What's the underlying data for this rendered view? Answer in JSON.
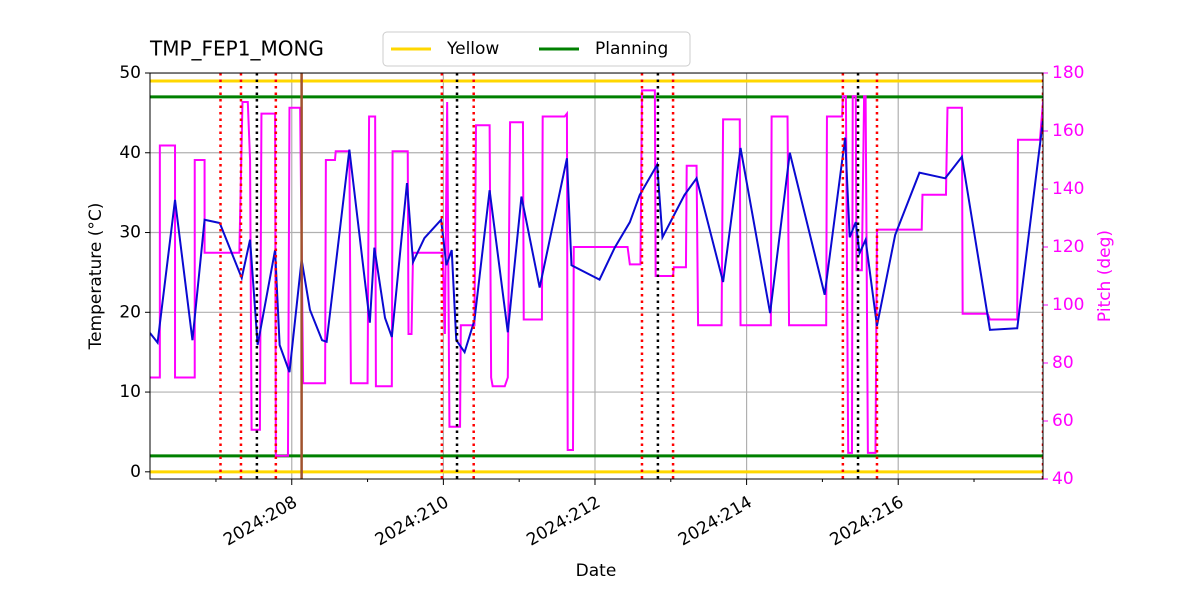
{
  "chart_data": {
    "type": "line",
    "title": "TMP_FEP1_MONG",
    "xlabel": "Date",
    "ylabel": "Temperature (°C)",
    "y2label": "Pitch (deg)",
    "y2color": "#ff00ff",
    "xlim": [
      206.13,
      217.91
    ],
    "ylim": [
      -0.9,
      50
    ],
    "y2lim": [
      40,
      180
    ],
    "xticks": [
      {
        "value": 208,
        "label": "2024:208"
      },
      {
        "value": 210,
        "label": "2024:210"
      },
      {
        "value": 212,
        "label": "2024:212"
      },
      {
        "value": 214,
        "label": "2024:214"
      },
      {
        "value": 216,
        "label": "2024:216"
      }
    ],
    "xminorticks": [
      207,
      209,
      211,
      213,
      215,
      217
    ],
    "yticks": [
      0,
      10,
      20,
      30,
      40,
      50
    ],
    "y2ticks": [
      40,
      60,
      80,
      100,
      120,
      140,
      160,
      180
    ],
    "grid": true,
    "legend": "top",
    "series": [
      {
        "color": "#0a0ad2",
        "axis": "y",
        "x": [
          206.13,
          206.23,
          206.46,
          206.69,
          206.85,
          207.05,
          207.34,
          207.45,
          207.55,
          207.78,
          207.84,
          207.97,
          208.13,
          208.24,
          208.4,
          208.46,
          208.76,
          209.03,
          209.09,
          209.23,
          209.32,
          209.52,
          209.6,
          209.75,
          209.97,
          210.04,
          210.11,
          210.17,
          210.28,
          210.41,
          210.61,
          210.85,
          211.03,
          211.27,
          211.63,
          211.69,
          212.06,
          212.26,
          212.46,
          212.59,
          212.82,
          212.89,
          213.18,
          213.34,
          213.69,
          213.92,
          214.31,
          214.57,
          215.03,
          215.3,
          215.36,
          215.44,
          215.49,
          215.57,
          215.72,
          215.96,
          216.28,
          216.62,
          216.84,
          217.21,
          217.57,
          217.91
        ],
        "values": [
          17.4,
          16.2,
          34.1,
          16.5,
          31.6,
          31.2,
          24.3,
          29.1,
          15.9,
          27.8,
          15.9,
          12.5,
          26.6,
          20.3,
          16.5,
          16.3,
          40.4,
          18.7,
          28.1,
          19.3,
          16.9,
          36.2,
          26.3,
          29.3,
          31.6,
          25.9,
          27.8,
          16.5,
          15.0,
          19.0,
          35.3,
          17.5,
          34.5,
          23.1,
          39.3,
          25.9,
          24.1,
          28.1,
          31.3,
          34.7,
          38.5,
          29.4,
          34.7,
          36.8,
          23.8,
          40.6,
          19.9,
          40.0,
          22.2,
          41.9,
          29.4,
          31.3,
          27.4,
          29.1,
          18.3,
          29.7,
          37.5,
          36.8,
          39.5,
          17.8,
          18.0,
          44.1
        ]
      },
      {
        "color": "#ff00ff",
        "axis": "y2",
        "x": [
          206.13,
          206.26,
          206.26,
          206.46,
          206.46,
          206.72,
          206.72,
          206.85,
          206.85,
          207.31,
          207.31,
          207.35,
          207.42,
          207.45,
          207.47,
          207.58,
          207.6,
          207.78,
          207.79,
          207.95,
          207.97,
          208.11,
          208.15,
          208.44,
          208.45,
          208.57,
          208.58,
          208.76,
          208.78,
          209.0,
          209.02,
          209.1,
          209.11,
          209.32,
          209.33,
          209.53,
          209.54,
          209.58,
          209.6,
          209.99,
          210.02,
          210.05,
          210.08,
          210.22,
          210.23,
          210.41,
          210.43,
          210.61,
          210.63,
          210.65,
          210.81,
          210.85,
          210.88,
          211.05,
          211.06,
          211.3,
          211.31,
          211.6,
          211.63,
          211.64,
          211.71,
          211.72,
          212.43,
          212.46,
          212.6,
          212.62,
          212.79,
          212.8,
          213.03,
          213.04,
          213.2,
          213.21,
          213.34,
          213.36,
          213.67,
          213.69,
          213.91,
          213.92,
          214.32,
          214.33,
          214.54,
          214.56,
          215.05,
          215.06,
          215.26,
          215.27,
          215.31,
          215.34,
          215.39,
          215.4,
          215.44,
          215.45,
          215.52,
          215.55,
          215.57,
          215.6,
          215.7,
          215.72,
          216.31,
          216.32,
          216.63,
          216.65,
          216.84,
          216.85,
          217.18,
          217.21,
          217.57,
          217.58,
          217.87,
          217.91
        ],
        "values": [
          75,
          75,
          155,
          155,
          75,
          75,
          150,
          150,
          118,
          118,
          120,
          170,
          170,
          150,
          57,
          57,
          166,
          166,
          48,
          48,
          168,
          168,
          73,
          73,
          150,
          150,
          153,
          153,
          73,
          73,
          165,
          165,
          72,
          72,
          153,
          153,
          90,
          90,
          118,
          118,
          90,
          170,
          58,
          58,
          93,
          93,
          162,
          162,
          75,
          72,
          72,
          75,
          163,
          163,
          95,
          95,
          165,
          165,
          166,
          50,
          50,
          120,
          120,
          114,
          114,
          174,
          174,
          110,
          110,
          113,
          113,
          148,
          148,
          93,
          93,
          164,
          164,
          93,
          93,
          165,
          165,
          93,
          93,
          165,
          165,
          172,
          172,
          49,
          49,
          172,
          172,
          112,
          112,
          172,
          172,
          49,
          49,
          126,
          126,
          138,
          138,
          168,
          168,
          97,
          97,
          95,
          95,
          157,
          157,
          170
        ]
      }
    ],
    "limits": [
      {
        "name": "Yellow",
        "color": "#ffd700",
        "values": [
          0,
          49
        ]
      },
      {
        "name": "Planning",
        "color": "#008000",
        "values": [
          2,
          47
        ]
      }
    ],
    "vlines": [
      {
        "color": "#ff0000",
        "style": "dotted",
        "x": [
          207.06,
          207.33,
          207.79,
          209.98,
          210.4,
          212.62,
          213.03,
          215.27,
          215.72,
          217.91
        ]
      },
      {
        "color": "#000000",
        "style": "dotted",
        "x": [
          207.54,
          210.18,
          212.83,
          215.47
        ]
      },
      {
        "color": "#a0522d",
        "style": "solid",
        "x": [
          208.13
        ]
      }
    ]
  }
}
